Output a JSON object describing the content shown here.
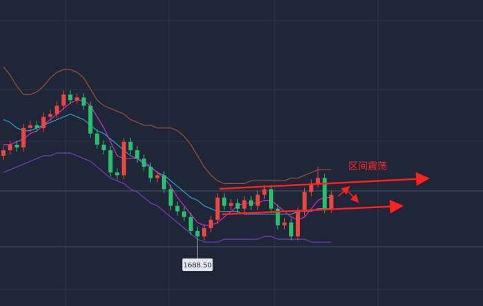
{
  "chart_data": {
    "type": "candlestick",
    "annotation": "区间震荡",
    "low_marker": {
      "value": 1688.5,
      "label": "1688.50"
    },
    "low_marker_index": 29,
    "ylim": [
      1666,
      1776
    ],
    "up_color": "#e8483f",
    "down_color": "#2dbd6e",
    "open": [
      1720,
      1722,
      1724,
      1723,
      1730,
      1731,
      1730,
      1734,
      1735,
      1738,
      1742,
      1740,
      1741,
      1738,
      1728,
      1724,
      1722,
      1714,
      1713,
      1725,
      1722,
      1719,
      1716,
      1712,
      1713,
      1708,
      1702,
      1700,
      1698,
      1693,
      1691,
      1694,
      1697,
      1705,
      1702,
      1703,
      1701,
      1704,
      1702,
      1706,
      1708,
      1701,
      1695,
      1696,
      1691,
      1700,
      1707,
      1710,
      1712,
      1701
    ],
    "high": [
      1723.5,
      1725.5,
      1725.5,
      1731.5,
      1732.5,
      1732.5,
      1735.5,
      1736.5,
      1739.5,
      1743.5,
      1743.5,
      1742.5,
      1742.5,
      1739.5,
      1729.5,
      1725.5,
      1723.5,
      1715.5,
      1726.5,
      1726.5,
      1723.5,
      1720.5,
      1717.5,
      1714.5,
      1714.5,
      1709.5,
      1703.5,
      1701.5,
      1699.5,
      1694.5,
      1695.5,
      1698.5,
      1706.5,
      1706.5,
      1704.5,
      1704.5,
      1705.5,
      1705.5,
      1707.5,
      1709.5,
      1709.5,
      1702.5,
      1697.5,
      1697.5,
      1701.5,
      1708.5,
      1711.5,
      1716,
      1713.5,
      1707.5
    ],
    "low": [
      1718.5,
      1720.5,
      1721.5,
      1721.5,
      1728.5,
      1728.5,
      1728.5,
      1732.5,
      1733.5,
      1736.5,
      1738.5,
      1738.5,
      1736.5,
      1726.5,
      1722.5,
      1720.5,
      1712.5,
      1711.5,
      1711.5,
      1720.5,
      1717.5,
      1714.5,
      1710.5,
      1710.5,
      1706.5,
      1700.5,
      1698.5,
      1696.5,
      1691.5,
      1688.5,
      1689.5,
      1692.5,
      1695.5,
      1700.5,
      1700.5,
      1699.5,
      1699.5,
      1700.5,
      1700.5,
      1704.5,
      1699.5,
      1693.5,
      1693.5,
      1689.5,
      1689.5,
      1698.5,
      1705.5,
      1708.5,
      1699.5,
      1699.5
    ],
    "close": [
      1722,
      1724,
      1723,
      1730,
      1731,
      1730,
      1734,
      1735,
      1738,
      1742,
      1740,
      1741,
      1738,
      1728,
      1724,
      1722,
      1714,
      1713,
      1725,
      1722,
      1719,
      1716,
      1712,
      1713,
      1708,
      1702,
      1700,
      1698,
      1693,
      1691,
      1694,
      1697,
      1705,
      1702,
      1703,
      1701,
      1704,
      1702,
      1706,
      1708,
      1701,
      1695,
      1696,
      1691,
      1700,
      1707,
      1710,
      1712,
      1701,
      1706
    ],
    "series": [
      {
        "color": "#a0503c",
        "values": [
          1752,
          1749,
          1745,
          1742,
          1742,
          1743,
          1745,
          1748,
          1750,
          1751,
          1751,
          1750,
          1748,
          1744,
          1740,
          1738,
          1737,
          1736,
          1735,
          1733,
          1732,
          1731,
          1731,
          1730,
          1730,
          1730,
          1729,
          1727,
          1724,
          1720,
          1716,
          1713,
          1711,
          1710,
          1710,
          1710,
          1710,
          1711,
          1711,
          1711,
          1711,
          1711,
          1711,
          1712,
          1712,
          1713,
          1714,
          1715,
          1715,
          1715
        ]
      },
      {
        "color": "#22a7c9",
        "values": [
          1733,
          1732,
          1730,
          1729,
          1729,
          1730,
          1731,
          1732,
          1733,
          1734,
          1735,
          1734,
          1733,
          1731,
          1729,
          1728,
          1726,
          1724,
          1722,
          1720,
          1719,
          1717,
          1716,
          1714,
          1713,
          1711,
          1709,
          1707,
          1705,
          1704,
          1702,
          1701,
          1700,
          1700,
          1700,
          1700,
          1699,
          1699,
          1699,
          1699,
          1699,
          1699,
          1699,
          1699,
          1700,
          1700,
          1700,
          1701,
          1701,
          1701
        ]
      },
      {
        "color": "#7a3fbf",
        "values": [
          1714,
          1715,
          1716,
          1717,
          1718,
          1719,
          1720,
          1720,
          1721,
          1721,
          1721,
          1720,
          1719,
          1718,
          1716,
          1714,
          1712,
          1711,
          1710,
          1708,
          1707,
          1705,
          1703,
          1702,
          1700,
          1698,
          1696,
          1694,
          1692,
          1690,
          1689,
          1689,
          1689,
          1690,
          1690,
          1690,
          1690,
          1690,
          1690,
          1691,
          1691,
          1690,
          1690,
          1690,
          1690,
          1690,
          1689,
          1689,
          1689,
          1689
        ]
      },
      {
        "color": "#d02fd0",
        "values": [
          1724,
          1724,
          1725,
          1726,
          1728,
          1729,
          1731,
          1733,
          1735,
          1737,
          1739,
          1740,
          1740,
          1738,
          1734,
          1730,
          1725,
          1720,
          1719,
          1719,
          1719,
          1718,
          1716,
          1714,
          1712,
          1709,
          1705,
          1702,
          1699,
          1696,
          1695,
          1695,
          1696,
          1698,
          1700,
          1702,
          1703,
          1703,
          1703,
          1704,
          1704,
          1702,
          1700,
          1698,
          1697,
          1698,
          1701,
          1704,
          1705,
          1705
        ]
      }
    ]
  }
}
